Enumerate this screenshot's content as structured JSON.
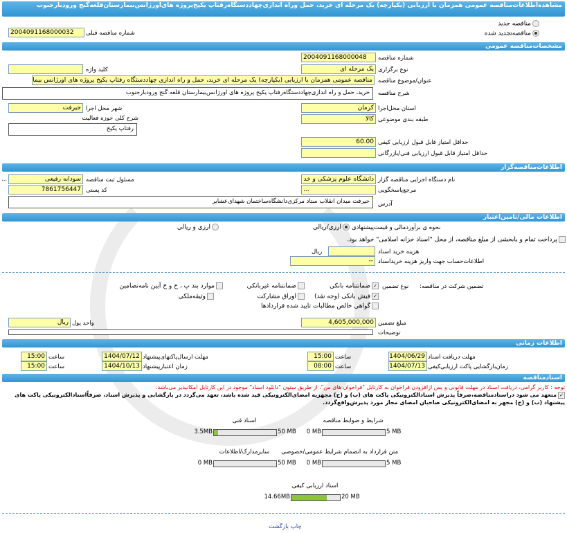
{
  "title": "مشاهده‌اطلاعات‌مناقصه عمومی همزمان با ارزیابی (یکپارچه) یک مرحله ای خرید، حمل وراه اندازی‌چهاددستگاه‌رفتاپ یکپخ‌پروژه های‌اورژانس‌بیمارستان‌قلعه‌گنج ورودبارجنوب",
  "top": {
    "new_label": "مناقصه جدید",
    "renewed_label": "مناقصه‌تجدید شده",
    "selected": "renewed",
    "prev_number_label": "شماره مناقصه قبلی",
    "prev_number": "2004091168000032"
  },
  "general": {
    "header": "مشخصات‌مناقصه عمومی",
    "number_label": "شماره مناقصه",
    "number": "2004091168000048",
    "type_label": "نوع برگزاری",
    "type": "یک مرحله ای",
    "keyword_label": "کلید واژه",
    "keyword": "",
    "subject_label": "عنوان/موضوع مناقصه",
    "subject": "مناقصه عمومی همزمان با ارزیابی (یکپارچه) یک مرحله ای خرید، حمل و راه اندازی چهاددستگاه رفتاپ یکپخ پروژه های اورژانس بیمار",
    "desc_label": "شرح مناقصه",
    "desc": "خرید، حمل و راه اندازی‌چهاددستگاه‌رفتاپ یکپخ پروژه های اورژانس‌بیمارستان قلعه گنج ورودبارجنوب",
    "province_label": "استان محل‌اجرا",
    "province": "کرمان",
    "city_label": "شهر محل اجرا",
    "city": "جیرفت",
    "category_label": "طبقه بندی موضوعی",
    "category": "کالا",
    "activity_label": "شرح کلی حوزه فعالیت",
    "activity": "رفتاپ یکپخ",
    "min_quality_label": "حداقل امتیاز قابل قبول ارزیابی کیفی",
    "min_quality": "60.00",
    "min_tech_label": "حداقل امتیاز قابل قبول ارزیابی فنی/بازرگانی",
    "min_tech": ""
  },
  "organizer": {
    "header": "اطلاعات‌مناقصه‌گزار",
    "org_label": "نام دستگاه اجرایی مناقصه گزار",
    "org": "دانشگاه علوم پزشکی و خد",
    "resp_label": "مسئول ثبت مناقصه",
    "resp": "سودابه رفیعی",
    "ref_label": "مرجع‌پاسخگویی",
    "ref": "...",
    "postal_label": "کد پستی",
    "postal": "7861756447",
    "address_label": "آدرس",
    "address": "جیرفت میدان انقلاب ستاد مرکزی‌دانشگاه‌ساختمان شهدای‌عشایر",
    "more": "..."
  },
  "finance": {
    "header": "اطلاعات مالی/تامین‌اعتبار",
    "method_label": "نحوه ی برآوردمالی و قیمت‌پیشنهادی",
    "opt_rial": "ارزی/ریالی",
    "opt_both": "ارزی و ریالی",
    "treasury_label": "پرداخت تمام و یابخشی از مبلغ مناقصه، از محل \"اسناد خزانه اسلامی\" خواهد بود.",
    "doc_cost_label": "هزینه خرید اسناد",
    "doc_cost_unit": "ریال",
    "doc_cost": "",
    "account_label": "اطلاعات‌حساب جهت واریز هزینه خریداسناد",
    "account": "--",
    "guarantee_label": "تضمین شرکت در مناقصه:",
    "guarantee_type_label": "نوع تضمین",
    "guarantees": [
      {
        "label": "ضمانتنامه بانکی",
        "checked": true
      },
      {
        "label": "ضمانتنامه غیربانکی",
        "checked": false
      },
      {
        "label": "موارد بند پ ، ح و خ آیین نامه‌تضامین",
        "checked": false
      },
      {
        "label": "فیش بانکی (وجه نقد)",
        "checked": true
      },
      {
        "label": "اوراق مشارکت",
        "checked": false
      },
      {
        "label": "وثیقه‌ملکی",
        "checked": false
      },
      {
        "label": "گواهی خالص مطالبات تایید شده قراردادها",
        "checked": false
      }
    ],
    "amount_label": "مبلغ تضمین",
    "amount": "4,605,000,000",
    "currency_label": "واحد پول",
    "currency": "ریال",
    "notes_label": "توضیحات",
    "notes": ""
  },
  "timing": {
    "header": "اطلاعات زمانی",
    "r1": {
      "a_label": "مهلت دریافت اسناد",
      "a": "1404/06/29",
      "a_time_label": "ساعت",
      "a_time": "15:00",
      "b_label": "مهلت ارسال‌پاکتهای‌پیشنهاد",
      "b": "1404/07/12",
      "b_time_label": "ساعت",
      "b_time": "15:00"
    },
    "r2": {
      "a_label": "زمان‌بازگشایی پاکت ارزیابی‌کیفی",
      "a": "1404/07/13",
      "a_time_label": "ساعت",
      "a_time": "08:00",
      "b_label": "زمان اعتبارپیشنهاد",
      "b": "1404/10/13",
      "b_time_label": "ساعت",
      "b_time": "15:00"
    }
  },
  "docs": {
    "header": "اسنادمناقصه",
    "notice": "توجه : کاربر گرامی، دریافت اسناد در مهلت قانونی و پس ازافزودن فراخوان به کارتابل \"فراخوان های من\"، از طریق ستون \"دانلود اسناد\" موجود در این کارتابل امکانپذیر می‌باشد.",
    "commit": "متعهد می شود دراسنادمناقصه،صرفاً پذیرش اسنادالکترونیکی پاکت های (ب) و (ج) مجهزبه امضای‌الکترونیکی قید شده باشد، تعهد می‌گردد در بازگشایی و پذیرش اسناد، صرفاًاسنادالکترونیکی پاکت های پیشنهاد (ب) و (ج) مجهز به امضای‌الکترونیکی صاحبان امضای مجاز مورد پذیرش‌واقع‌گردد.",
    "files": [
      {
        "label": "شرایط و ضوابط مناقصه",
        "used": "0 MB",
        "max": "5 MB",
        "fraction": 0
      },
      {
        "label": "اسناد فنی",
        "used": "3.5MB",
        "max": "50 MB",
        "fraction": 0.07
      },
      {
        "label": "متن قرارداد به انضمام شرایط عمومی/خصوصی",
        "used": "0 MB",
        "max": "5 MB",
        "fraction": 0
      },
      {
        "label": "سایرمدارک/اطلاعات",
        "used": "0 MB",
        "max": "50 MB",
        "fraction": 0
      },
      {
        "label": "اسناد ارزیابی کیفی",
        "used": "14.66MB",
        "max": "20 MB",
        "fraction": 0.733
      }
    ]
  },
  "footer": {
    "print_back": "چاپ بازگشت"
  }
}
